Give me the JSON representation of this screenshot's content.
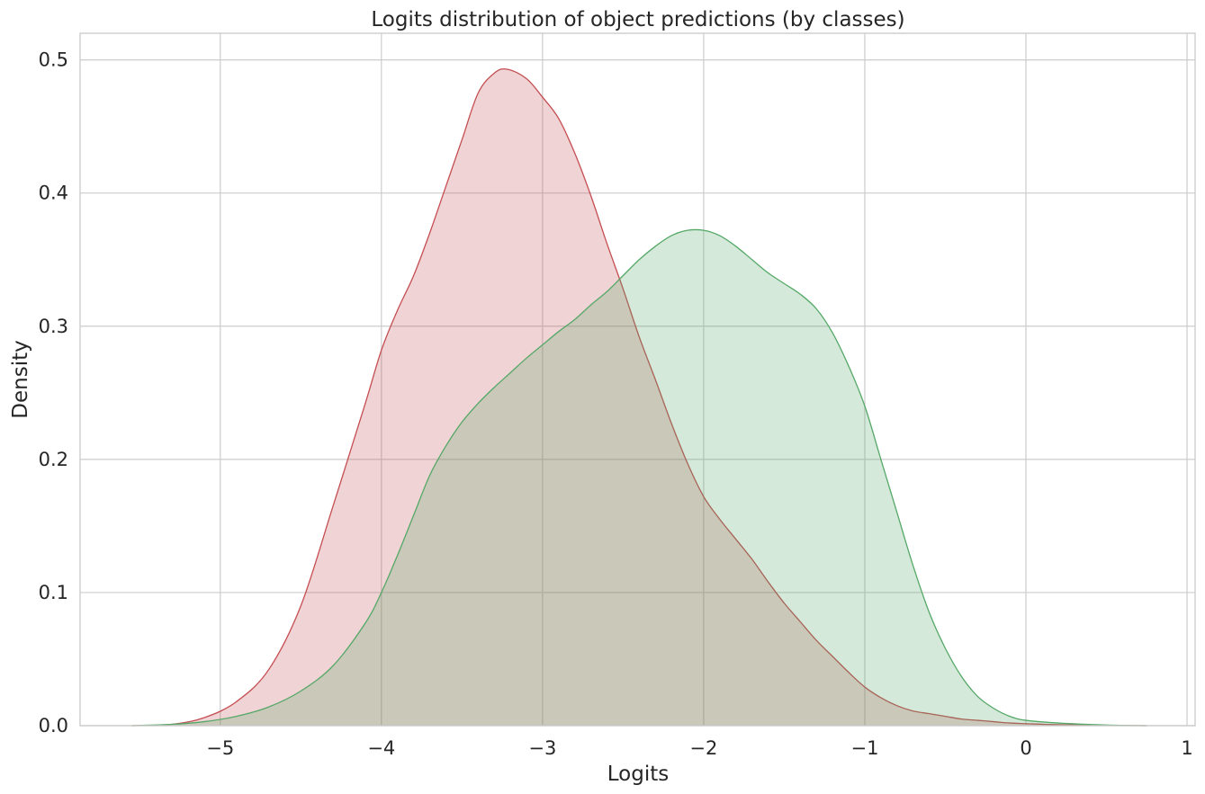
{
  "chart_data": {
    "type": "area",
    "title": "Logits distribution of object predictions (by classes)",
    "xlabel": "Logits",
    "ylabel": "Density",
    "xlim": [
      -5.87,
      1.05
    ],
    "ylim": [
      0,
      0.52
    ],
    "xticks": [
      -5,
      -4,
      -3,
      -2,
      -1,
      0,
      1
    ],
    "xtick_labels": [
      "−5",
      "−4",
      "−3",
      "−2",
      "−1",
      "0",
      "1"
    ],
    "yticks": [
      0.0,
      0.1,
      0.2,
      0.3,
      0.4,
      0.5
    ],
    "ytick_labels": [
      "0.0",
      "0.1",
      "0.2",
      "0.3",
      "0.4",
      "0.5"
    ],
    "grid": true,
    "series": [
      {
        "color": "#c44e52",
        "fill_opacity": 0.25,
        "x": [
          -5.55,
          -5.3,
          -5.1,
          -4.9,
          -4.7,
          -4.5,
          -4.3,
          -4.1,
          -4.0,
          -3.9,
          -3.8,
          -3.7,
          -3.6,
          -3.5,
          -3.4,
          -3.3,
          -3.22,
          -3.1,
          -3.0,
          -2.9,
          -2.8,
          -2.7,
          -2.6,
          -2.5,
          -2.4,
          -2.3,
          -2.2,
          -2.1,
          -2.0,
          -1.9,
          -1.8,
          -1.7,
          -1.6,
          -1.5,
          -1.4,
          -1.3,
          -1.2,
          -1.1,
          -1.0,
          -0.9,
          -0.8,
          -0.7,
          -0.6,
          -0.5,
          -0.4,
          -0.3,
          -0.2,
          -0.1,
          0.0,
          0.2,
          0.5,
          0.75
        ],
        "y": [
          0.0,
          0.001,
          0.006,
          0.018,
          0.042,
          0.09,
          0.165,
          0.242,
          0.282,
          0.312,
          0.338,
          0.37,
          0.405,
          0.44,
          0.475,
          0.49,
          0.493,
          0.486,
          0.472,
          0.456,
          0.43,
          0.398,
          0.362,
          0.328,
          0.292,
          0.26,
          0.227,
          0.197,
          0.172,
          0.155,
          0.14,
          0.125,
          0.108,
          0.092,
          0.078,
          0.064,
          0.052,
          0.04,
          0.029,
          0.021,
          0.015,
          0.011,
          0.009,
          0.007,
          0.005,
          0.004,
          0.003,
          0.002,
          0.0015,
          0.0007,
          0.0002,
          0.0
        ]
      },
      {
        "color": "#55a868",
        "fill_opacity": 0.25,
        "x": [
          -5.55,
          -5.3,
          -5.1,
          -4.9,
          -4.7,
          -4.5,
          -4.3,
          -4.1,
          -4.0,
          -3.9,
          -3.8,
          -3.7,
          -3.6,
          -3.5,
          -3.4,
          -3.3,
          -3.2,
          -3.1,
          -3.0,
          -2.9,
          -2.8,
          -2.7,
          -2.6,
          -2.5,
          -2.4,
          -2.3,
          -2.2,
          -2.1,
          -2.0,
          -1.9,
          -1.8,
          -1.7,
          -1.6,
          -1.5,
          -1.4,
          -1.3,
          -1.2,
          -1.1,
          -1.0,
          -0.9,
          -0.8,
          -0.7,
          -0.6,
          -0.5,
          -0.4,
          -0.3,
          -0.2,
          -0.1,
          0.0,
          0.2,
          0.5,
          0.75
        ],
        "y": [
          0.0,
          0.001,
          0.003,
          0.007,
          0.014,
          0.026,
          0.045,
          0.077,
          0.1,
          0.128,
          0.158,
          0.188,
          0.21,
          0.228,
          0.242,
          0.254,
          0.265,
          0.276,
          0.286,
          0.296,
          0.305,
          0.316,
          0.326,
          0.338,
          0.35,
          0.36,
          0.368,
          0.372,
          0.372,
          0.368,
          0.36,
          0.35,
          0.34,
          0.332,
          0.324,
          0.313,
          0.295,
          0.27,
          0.24,
          0.2,
          0.16,
          0.12,
          0.085,
          0.058,
          0.037,
          0.022,
          0.013,
          0.007,
          0.004,
          0.002,
          0.0005,
          0.0
        ]
      }
    ]
  }
}
